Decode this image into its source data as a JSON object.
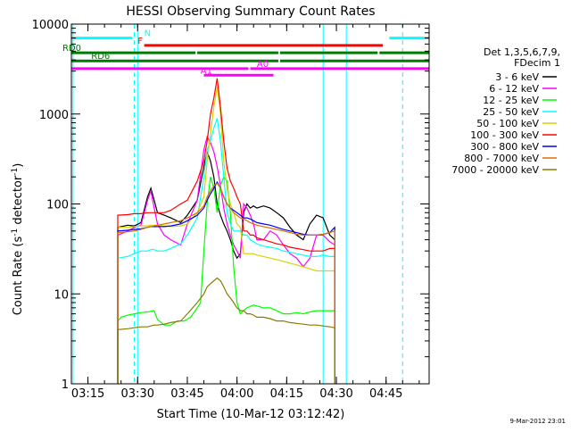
{
  "chart_data": {
    "type": "line",
    "title": "HESSI Observing Summary Count Rates",
    "xlabel": "Start Time (10-Mar-12 03:12:42)",
    "ylabel_main": "Count Rate (s",
    "ylabel_sup1": "-1",
    "ylabel_mid": " detector",
    "ylabel_sup2": "-1",
    "ylabel_end": ")",
    "y_scale": "log",
    "ylim": [
      1,
      10000
    ],
    "xlim_minutes": [
      190,
      298
    ],
    "x_ticks": [
      {
        "m": 195,
        "label": "03:15"
      },
      {
        "m": 210,
        "label": "03:30"
      },
      {
        "m": 225,
        "label": "03:45"
      },
      {
        "m": 240,
        "label": "04:00"
      },
      {
        "m": 255,
        "label": "04:15"
      },
      {
        "m": 270,
        "label": "04:30"
      },
      {
        "m": 285,
        "label": "04:45"
      }
    ],
    "y_ticks": [
      {
        "v": 1,
        "label": "1"
      },
      {
        "v": 10,
        "label": "10"
      },
      {
        "v": 100,
        "label": "100"
      },
      {
        "v": 1000,
        "label": "1000"
      },
      {
        "v": 10000,
        "label": "10000"
      }
    ],
    "legend_header": [
      "Det 1,3,5,6,7,9,",
      "FDecim 1"
    ],
    "legend_position": "right",
    "series": [
      {
        "name": "3 - 6 keV",
        "color": "#000000",
        "x": [
          204,
          207,
          209,
          211,
          213,
          214,
          215,
          216,
          218,
          220,
          223,
          225,
          228,
          230,
          231,
          232,
          233,
          234,
          235,
          236,
          237,
          238,
          239,
          240,
          241,
          242,
          243,
          244,
          245,
          246,
          248,
          250,
          252,
          254,
          256,
          258,
          260,
          262,
          264,
          266,
          268,
          269.5
        ],
        "y": [
          55,
          58,
          57,
          62,
          120,
          150,
          110,
          80,
          75,
          70,
          62,
          75,
          110,
          260,
          380,
          300,
          200,
          100,
          75,
          60,
          50,
          40,
          30,
          25,
          28,
          80,
          100,
          90,
          95,
          90,
          95,
          90,
          80,
          70,
          55,
          45,
          40,
          60,
          75,
          70,
          45,
          40
        ]
      },
      {
        "name": "6 - 12 keV",
        "color": "#ff00ff",
        "x": [
          204,
          207,
          209,
          211,
          213,
          214,
          215,
          216,
          218,
          220,
          223,
          225,
          228,
          230,
          231,
          232,
          233,
          234,
          235,
          236,
          237,
          238,
          239,
          240,
          241,
          242,
          243,
          244,
          245,
          246,
          248,
          250,
          252,
          254,
          256,
          258,
          260,
          262,
          264,
          266,
          268,
          269.5
        ],
        "y": [
          45,
          50,
          55,
          58,
          110,
          140,
          90,
          60,
          45,
          40,
          35,
          60,
          110,
          400,
          560,
          480,
          380,
          260,
          160,
          90,
          60,
          45,
          35,
          30,
          25,
          100,
          90,
          75,
          60,
          40,
          40,
          50,
          45,
          35,
          28,
          25,
          20,
          25,
          45,
          45,
          38,
          35
        ]
      },
      {
        "name": "12 - 25 keV",
        "color": "#00ff00",
        "x": [
          204,
          205,
          207,
          209,
          211,
          213,
          214,
          215,
          216,
          218,
          220,
          222,
          224,
          226,
          228,
          229,
          230,
          231,
          232,
          233,
          234,
          235,
          236,
          237,
          238,
          239,
          240,
          241,
          242,
          243,
          245,
          248,
          250,
          252,
          254,
          256,
          258,
          260,
          262,
          264,
          266,
          268,
          269.5
        ],
        "y": [
          5,
          5.5,
          5.8,
          6,
          6.2,
          6.3,
          6.4,
          6.5,
          5.2,
          4.5,
          4.5,
          5,
          5,
          5.5,
          7,
          8,
          30,
          100,
          200,
          150,
          80,
          160,
          200,
          180,
          80,
          20,
          8,
          6,
          6.5,
          7,
          7.5,
          7,
          7,
          6.5,
          6,
          6,
          6.2,
          6,
          6.3,
          6.5,
          6.5,
          6.5,
          6.5
        ]
      },
      {
        "name": "25 - 50 keV",
        "color": "#00ffff",
        "x": [
          204,
          207,
          209,
          211,
          213,
          214,
          215,
          216,
          218,
          220,
          223,
          225,
          228,
          230,
          231,
          232,
          233,
          234,
          235,
          236,
          237,
          238,
          239,
          240,
          241,
          242,
          243,
          244,
          245,
          246,
          248,
          250,
          252,
          254,
          256,
          258,
          260,
          262,
          264,
          266,
          268,
          269.5
        ],
        "y": [
          25,
          26,
          28,
          30,
          30,
          31,
          31,
          30,
          30,
          32,
          36,
          45,
          70,
          200,
          400,
          500,
          700,
          900,
          500,
          200,
          80,
          60,
          50,
          50,
          50,
          45,
          45,
          40,
          38,
          36,
          34,
          33,
          32,
          30,
          29,
          28,
          27,
          26,
          26,
          27,
          26,
          26
        ]
      },
      {
        "name": "50 - 100 keV",
        "color": "#d4d400",
        "x": [
          204,
          207,
          209,
          211,
          213,
          214,
          215,
          216,
          218,
          220,
          223,
          225,
          228,
          230,
          231,
          232,
          233,
          234,
          235,
          236,
          237,
          238,
          239,
          240,
          241,
          242,
          243,
          244,
          245,
          246,
          248,
          250,
          252,
          254,
          256,
          258,
          260,
          262,
          264,
          266,
          268,
          269.5
        ],
        "y": [
          55,
          55,
          56,
          57,
          57,
          58,
          58,
          58,
          57,
          56,
          57,
          60,
          80,
          120,
          300,
          600,
          1200,
          2000,
          1000,
          300,
          150,
          100,
          80,
          60,
          55,
          28,
          28,
          28,
          28,
          27,
          26,
          25,
          24,
          23,
          22,
          21,
          20,
          19,
          18,
          18,
          18,
          18
        ]
      },
      {
        "name": "100 - 300 keV",
        "color": "#ff0000",
        "x": [
          204,
          207,
          209,
          211,
          213,
          214,
          215,
          216,
          218,
          220,
          223,
          225,
          228,
          230,
          231,
          232,
          233,
          234,
          235,
          236,
          237,
          238,
          239,
          240,
          241,
          242,
          243,
          244,
          245,
          246,
          248,
          250,
          252,
          254,
          256,
          258,
          260,
          262,
          264,
          266,
          268,
          269.5
        ],
        "y": [
          75,
          76,
          78,
          78,
          80,
          80,
          80,
          80,
          80,
          85,
          100,
          110,
          180,
          300,
          500,
          1000,
          1500,
          2500,
          1200,
          500,
          250,
          180,
          150,
          120,
          100,
          50,
          50,
          45,
          45,
          42,
          40,
          38,
          36,
          35,
          33,
          32,
          31,
          30,
          30,
          30,
          32,
          32
        ]
      },
      {
        "name": "300 - 800 keV",
        "color": "#0000ff",
        "x": [
          204,
          207,
          209,
          211,
          213,
          214,
          215,
          216,
          218,
          220,
          223,
          225,
          228,
          230,
          231,
          232,
          233,
          234,
          235,
          236,
          237,
          238,
          239,
          240,
          241,
          242,
          243,
          244,
          245,
          246,
          248,
          250,
          252,
          254,
          256,
          258,
          260,
          262,
          264,
          266,
          268,
          269.5
        ],
        "y": [
          50,
          51,
          52,
          53,
          55,
          56,
          56,
          56,
          56,
          57,
          60,
          65,
          75,
          90,
          110,
          130,
          150,
          175,
          150,
          120,
          100,
          90,
          85,
          80,
          75,
          70,
          70,
          68,
          65,
          62,
          60,
          58,
          55,
          52,
          50,
          48,
          46,
          45,
          45,
          46,
          48,
          55
        ]
      },
      {
        "name": "800 - 7000 keV",
        "color": "#e07000",
        "x": [
          204,
          207,
          209,
          211,
          213,
          214,
          215,
          216,
          218,
          220,
          223,
          225,
          228,
          230,
          231,
          232,
          233,
          234,
          235,
          236,
          237,
          238,
          239,
          240,
          241,
          242,
          243,
          244,
          245,
          246,
          248,
          250,
          252,
          254,
          256,
          258,
          260,
          262,
          264,
          266,
          268,
          269.5
        ],
        "y": [
          48,
          49,
          50,
          52,
          55,
          56,
          57,
          58,
          60,
          62,
          65,
          70,
          80,
          95,
          120,
          140,
          160,
          170,
          150,
          120,
          100,
          90,
          80,
          75,
          70,
          68,
          65,
          62,
          60,
          58,
          56,
          54,
          52,
          50,
          48,
          46,
          45,
          45,
          45,
          46,
          48,
          50
        ]
      },
      {
        "name": "7000 - 20000 keV",
        "color": "#8b7a00",
        "x": [
          204,
          207,
          209,
          211,
          213,
          214,
          215,
          216,
          218,
          220,
          223,
          225,
          228,
          230,
          231,
          232,
          233,
          234,
          235,
          236,
          237,
          238,
          239,
          240,
          241,
          242,
          243,
          244,
          245,
          246,
          248,
          250,
          252,
          254,
          256,
          258,
          260,
          262,
          264,
          266,
          268,
          269.5
        ],
        "y": [
          4,
          4.1,
          4.2,
          4.3,
          4.3,
          4.4,
          4.5,
          4.5,
          4.6,
          4.8,
          5,
          6,
          8,
          10,
          12,
          13,
          14,
          15,
          14,
          12,
          10,
          9,
          8,
          7,
          6.5,
          6.5,
          6,
          6,
          5.8,
          5.5,
          5.5,
          5.3,
          5,
          5,
          4.8,
          4.7,
          4.6,
          4.5,
          4.5,
          4.4,
          4.3,
          4.2
        ]
      }
    ],
    "flag_bars": [
      {
        "label": "N",
        "color": "#00ffff",
        "v": 7000,
        "segments": [
          [
            190,
            209
          ],
          [
            286,
            298
          ]
        ],
        "label_m": 212
      },
      {
        "label": "F",
        "color": "#ff0000",
        "v": 5800,
        "segments": [
          [
            212,
            284
          ]
        ],
        "label_m": 210
      },
      {
        "label": "RD0",
        "color": "#007a00",
        "v": 4800,
        "segments": [
          [
            190,
            228
          ],
          [
            228,
            253
          ],
          [
            253,
            283
          ],
          [
            283,
            298
          ]
        ],
        "label_m": 190
      },
      {
        "label": "RD6",
        "color": "#007a00",
        "v": 3900,
        "segments": [
          [
            190,
            253
          ],
          [
            253,
            298
          ]
        ],
        "label_m": 196
      },
      {
        "label": "A0",
        "color": "#ff00ff",
        "v": 3200,
        "segments": [
          [
            190,
            244
          ],
          [
            244,
            298
          ]
        ],
        "label_m": 246
      },
      {
        "label": "A1",
        "color": "#ff00ff",
        "v": 2700,
        "segments": [
          [
            230,
            251
          ]
        ],
        "label_m": 229
      }
    ],
    "saa_marks": {
      "color": "#00ffff",
      "solid_m": [
        190.5,
        210,
        266,
        273
      ],
      "dashed_m": [
        209,
        290
      ]
    }
  },
  "footer": {
    "date_stamp": "9-Mar-2012 23:01"
  }
}
